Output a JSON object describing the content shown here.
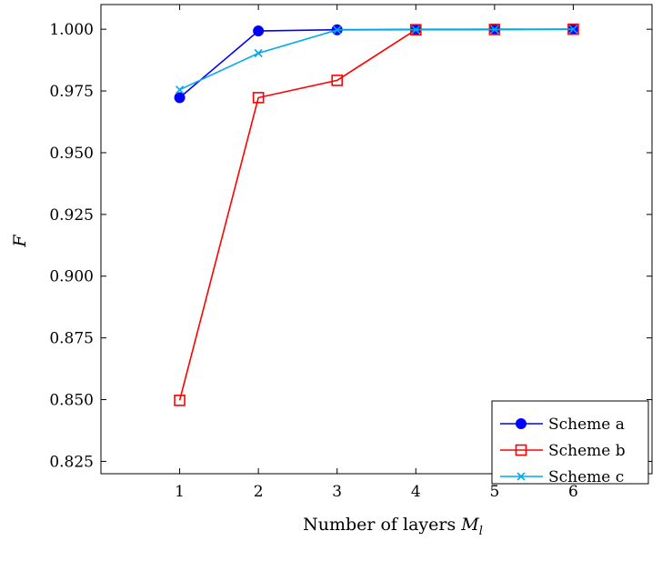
{
  "chart_data": {
    "type": "line",
    "title": "",
    "xlabel": "Number of layers M_l",
    "xlabel_parts": {
      "text": "Number of layers ",
      "symbol": "M",
      "subscript": "l"
    },
    "ylabel": "F",
    "x": [
      1,
      2,
      3,
      4,
      5,
      6
    ],
    "xlim": [
      0,
      7
    ],
    "ylim": [
      0.82,
      1.01
    ],
    "xticks": [
      "1",
      "2",
      "3",
      "4",
      "5",
      "6"
    ],
    "yticks": [
      "0.825",
      "0.850",
      "0.875",
      "0.900",
      "0.925",
      "0.950",
      "0.975",
      "1.000"
    ],
    "grid": false,
    "legend_position": "bottom-right",
    "series": [
      {
        "name": "Scheme a",
        "color": "#0000ff",
        "marker": "filled-circle",
        "values": [
          0.9723,
          0.9993,
          0.9998,
          0.9999,
          1.0,
          1.0
        ]
      },
      {
        "name": "Scheme b",
        "color": "#ff0000",
        "marker": "open-square",
        "values": [
          0.8497,
          0.9723,
          0.9793,
          0.9998,
          0.9999,
          1.0
        ]
      },
      {
        "name": "Scheme c",
        "color": "#00aaee",
        "marker": "cross",
        "values": [
          0.9755,
          0.9903,
          0.9997,
          0.9998,
          0.9999,
          1.0
        ]
      }
    ]
  }
}
